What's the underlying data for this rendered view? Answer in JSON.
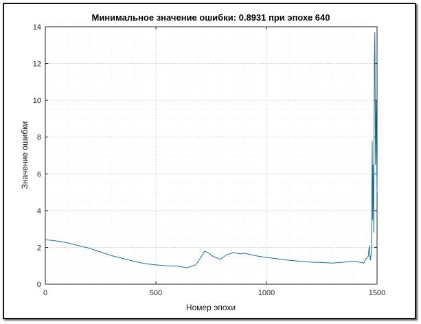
{
  "chart_data": {
    "type": "line",
    "title": "Минимальное значение ошибки: 0.8931 при эпохе 640",
    "xlabel": "Номер эпохи",
    "ylabel": "Значение ошибки",
    "xlim": [
      0,
      1500
    ],
    "ylim": [
      0,
      14
    ],
    "xticks": [
      0,
      500,
      1000,
      1500
    ],
    "yticks": [
      0,
      2,
      4,
      6,
      8,
      10,
      12,
      14
    ],
    "grid": true,
    "minor_grid": true,
    "line_color": "#1a6e9a",
    "series": [
      {
        "x": [
          0,
          50,
          100,
          150,
          200,
          250,
          300,
          350,
          400,
          450,
          500,
          550,
          600,
          640,
          680,
          700,
          720,
          735,
          760,
          790,
          820,
          850,
          880,
          900,
          950,
          1000,
          1050,
          1100,
          1150,
          1200,
          1250,
          1300,
          1350,
          1400,
          1420,
          1440,
          1450,
          1460,
          1465,
          1470,
          1475,
          1478,
          1480,
          1482,
          1485,
          1488,
          1490,
          1493,
          1496,
          1500
        ],
        "y": [
          2.42,
          2.35,
          2.25,
          2.1,
          1.95,
          1.75,
          1.55,
          1.4,
          1.25,
          1.12,
          1.05,
          1.0,
          0.98,
          0.89,
          1.05,
          1.4,
          1.78,
          1.72,
          1.5,
          1.35,
          1.6,
          1.72,
          1.65,
          1.68,
          1.55,
          1.45,
          1.38,
          1.3,
          1.25,
          1.2,
          1.18,
          1.15,
          1.2,
          1.25,
          1.2,
          1.15,
          1.4,
          1.5,
          2.1,
          1.3,
          1.8,
          7.8,
          3.5,
          6.5,
          2.8,
          12.3,
          13.7,
          6.5,
          10.0,
          5.0
        ]
      }
    ]
  }
}
